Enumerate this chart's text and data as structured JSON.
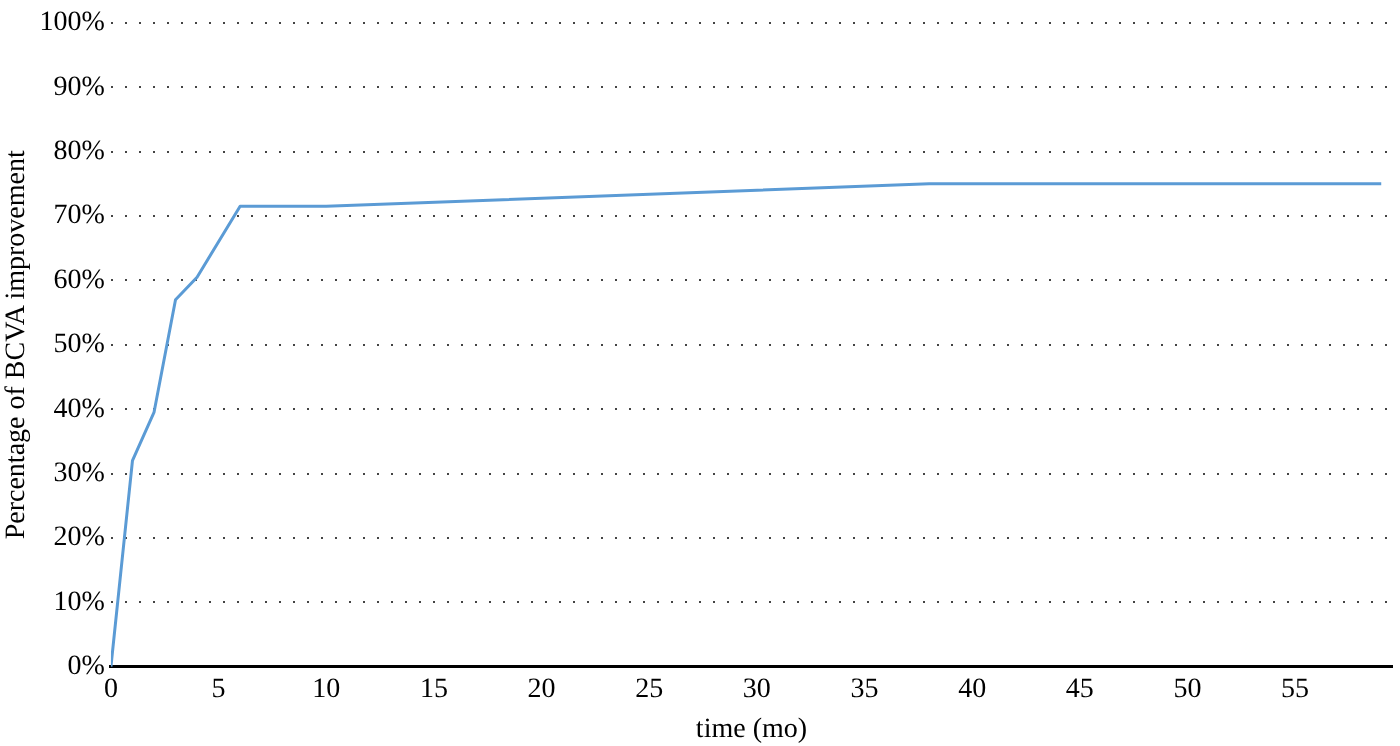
{
  "chart_data": {
    "type": "line",
    "xlabel": "time (mo)",
    "ylabel": "Percentage of BCVA improvement",
    "x": [
      0,
      1,
      2,
      3,
      4,
      6,
      10,
      38,
      59
    ],
    "series": [
      {
        "color": "#5b9bd5",
        "values": [
          0,
          32,
          39.5,
          57,
          60.5,
          71.5,
          71.5,
          75,
          75
        ]
      }
    ],
    "xlim": [
      0,
      59.5
    ],
    "xticks": [
      0,
      5,
      10,
      15,
      20,
      25,
      30,
      35,
      40,
      45,
      50,
      55
    ],
    "ylim": [
      0,
      100
    ],
    "yticks": [
      {
        "value": 0,
        "label": "0%"
      },
      {
        "value": 10,
        "label": "10%"
      },
      {
        "value": 20,
        "label": "20%"
      },
      {
        "value": 30,
        "label": "30%"
      },
      {
        "value": 40,
        "label": "40%"
      },
      {
        "value": 50,
        "label": "50%"
      },
      {
        "value": 60,
        "label": "60%"
      },
      {
        "value": 70,
        "label": "70%"
      },
      {
        "value": 80,
        "label": "80%"
      },
      {
        "value": 90,
        "label": "90%"
      },
      {
        "value": 100,
        "label": "100%"
      }
    ],
    "grid": "y",
    "legend": false,
    "marker": "none",
    "line_style": "solid"
  }
}
